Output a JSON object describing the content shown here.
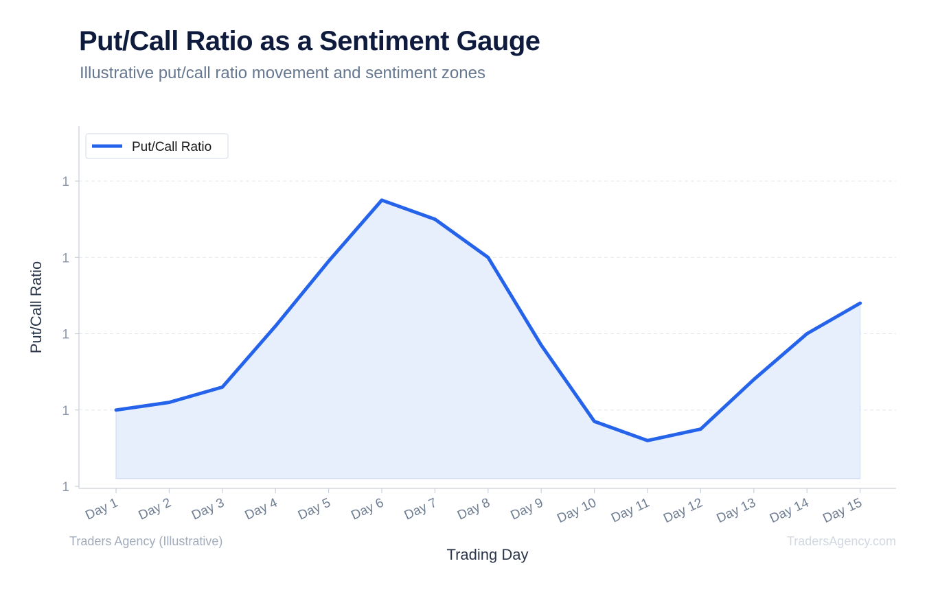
{
  "header": {
    "title": "Put/Call Ratio as a Sentiment Gauge",
    "subtitle": "Illustrative put/call ratio movement and sentiment zones"
  },
  "footer": {
    "source": "Traders Agency (Illustrative)",
    "watermark": "TradersAgency.com"
  },
  "chart_data": {
    "type": "area",
    "xlabel": "Trading Day",
    "ylabel": "Put/Call Ratio",
    "categories": [
      "Day 1",
      "Day 2",
      "Day 3",
      "Day 4",
      "Day 5",
      "Day 6",
      "Day 7",
      "Day 8",
      "Day 9",
      "Day 10",
      "Day 11",
      "Day 12",
      "Day 13",
      "Day 14",
      "Day 15"
    ],
    "series": [
      {
        "name": "Put/Call Ratio",
        "color": "#2563eb",
        "fill": "#e6effb",
        "values": [
          0.8,
          0.82,
          0.86,
          1.02,
          1.19,
          1.35,
          1.3,
          1.2,
          0.97,
          0.77,
          0.72,
          0.75,
          0.88,
          1.0,
          1.08
        ]
      }
    ],
    "ylim": [
      0.6,
      1.4
    ],
    "yticks": [
      0.6,
      0.8,
      1.0,
      1.2,
      1.4
    ],
    "ytick_labels": [
      "1",
      "1",
      "1",
      "1",
      "1"
    ],
    "fill_baseline": 0.62,
    "grid": true,
    "legend": "top-left"
  }
}
